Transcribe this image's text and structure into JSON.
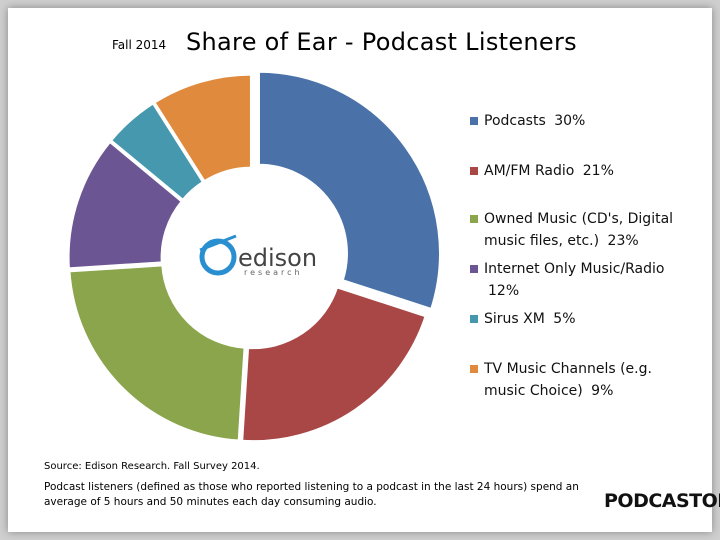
{
  "header": {
    "season": "Fall 2014"
  },
  "chart_data": {
    "type": "pie",
    "title": "Share of Ear  - Podcast Listeners",
    "categories": [
      "Podcasts",
      "AM/FM Radio",
      "Owned Music (CD's, Digital music files, etc.)",
      "Internet Only Music/Radio",
      "Sirus XM",
      "TV Music Channels (e.g. music Choice)"
    ],
    "values": [
      30,
      21,
      23,
      12,
      5,
      9
    ],
    "value_labels": [
      "30%",
      "21%",
      "23%",
      "12%",
      "5%",
      "9%"
    ],
    "colors": [
      "#4a72a8",
      "#a84745",
      "#8aa54b",
      "#6c5593",
      "#4598ae",
      "#df8a3c"
    ]
  },
  "footer": {
    "source": "Source: Edison Research.  Fall Survey 2014.",
    "note": "Podcast listeners (defined as those who reported listening to a podcast in the last 24 hours) spend an average of 5 hours and 50 minutes each day consuming audio."
  },
  "logos": {
    "edison": "edison",
    "edison_sub": "research",
    "podcastone": "PODCASTONE"
  }
}
